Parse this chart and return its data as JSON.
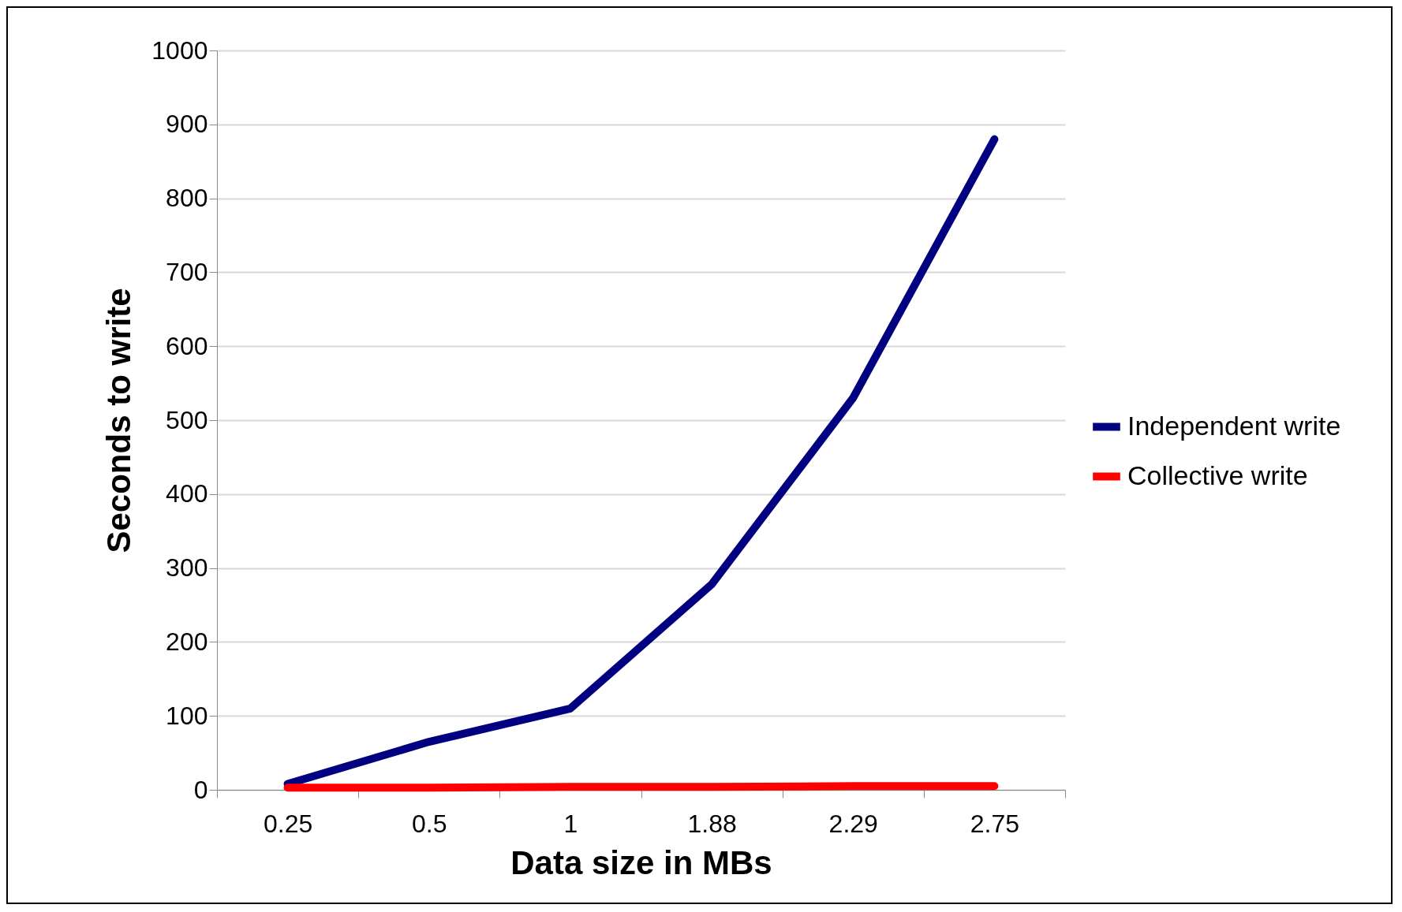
{
  "chart_data": {
    "type": "line",
    "xlabel": "Data size in MBs",
    "ylabel": "Seconds to write",
    "categories": [
      "0.25",
      "0.5",
      "1",
      "1.88",
      "2.29",
      "2.75"
    ],
    "series": [
      {
        "name": "Independent write",
        "color": "#000080",
        "values": [
          8,
          65,
          110,
          278,
          530,
          880
        ]
      },
      {
        "name": "Collective write",
        "color": "#ff0000",
        "values": [
          3,
          3,
          4,
          4,
          5,
          5
        ]
      }
    ],
    "ylim": [
      0,
      1000
    ],
    "yticks": [
      0,
      100,
      200,
      300,
      400,
      500,
      600,
      700,
      800,
      900,
      1000
    ],
    "grid": "y",
    "legend": "right",
    "marker": "none",
    "line_style": "solid"
  }
}
